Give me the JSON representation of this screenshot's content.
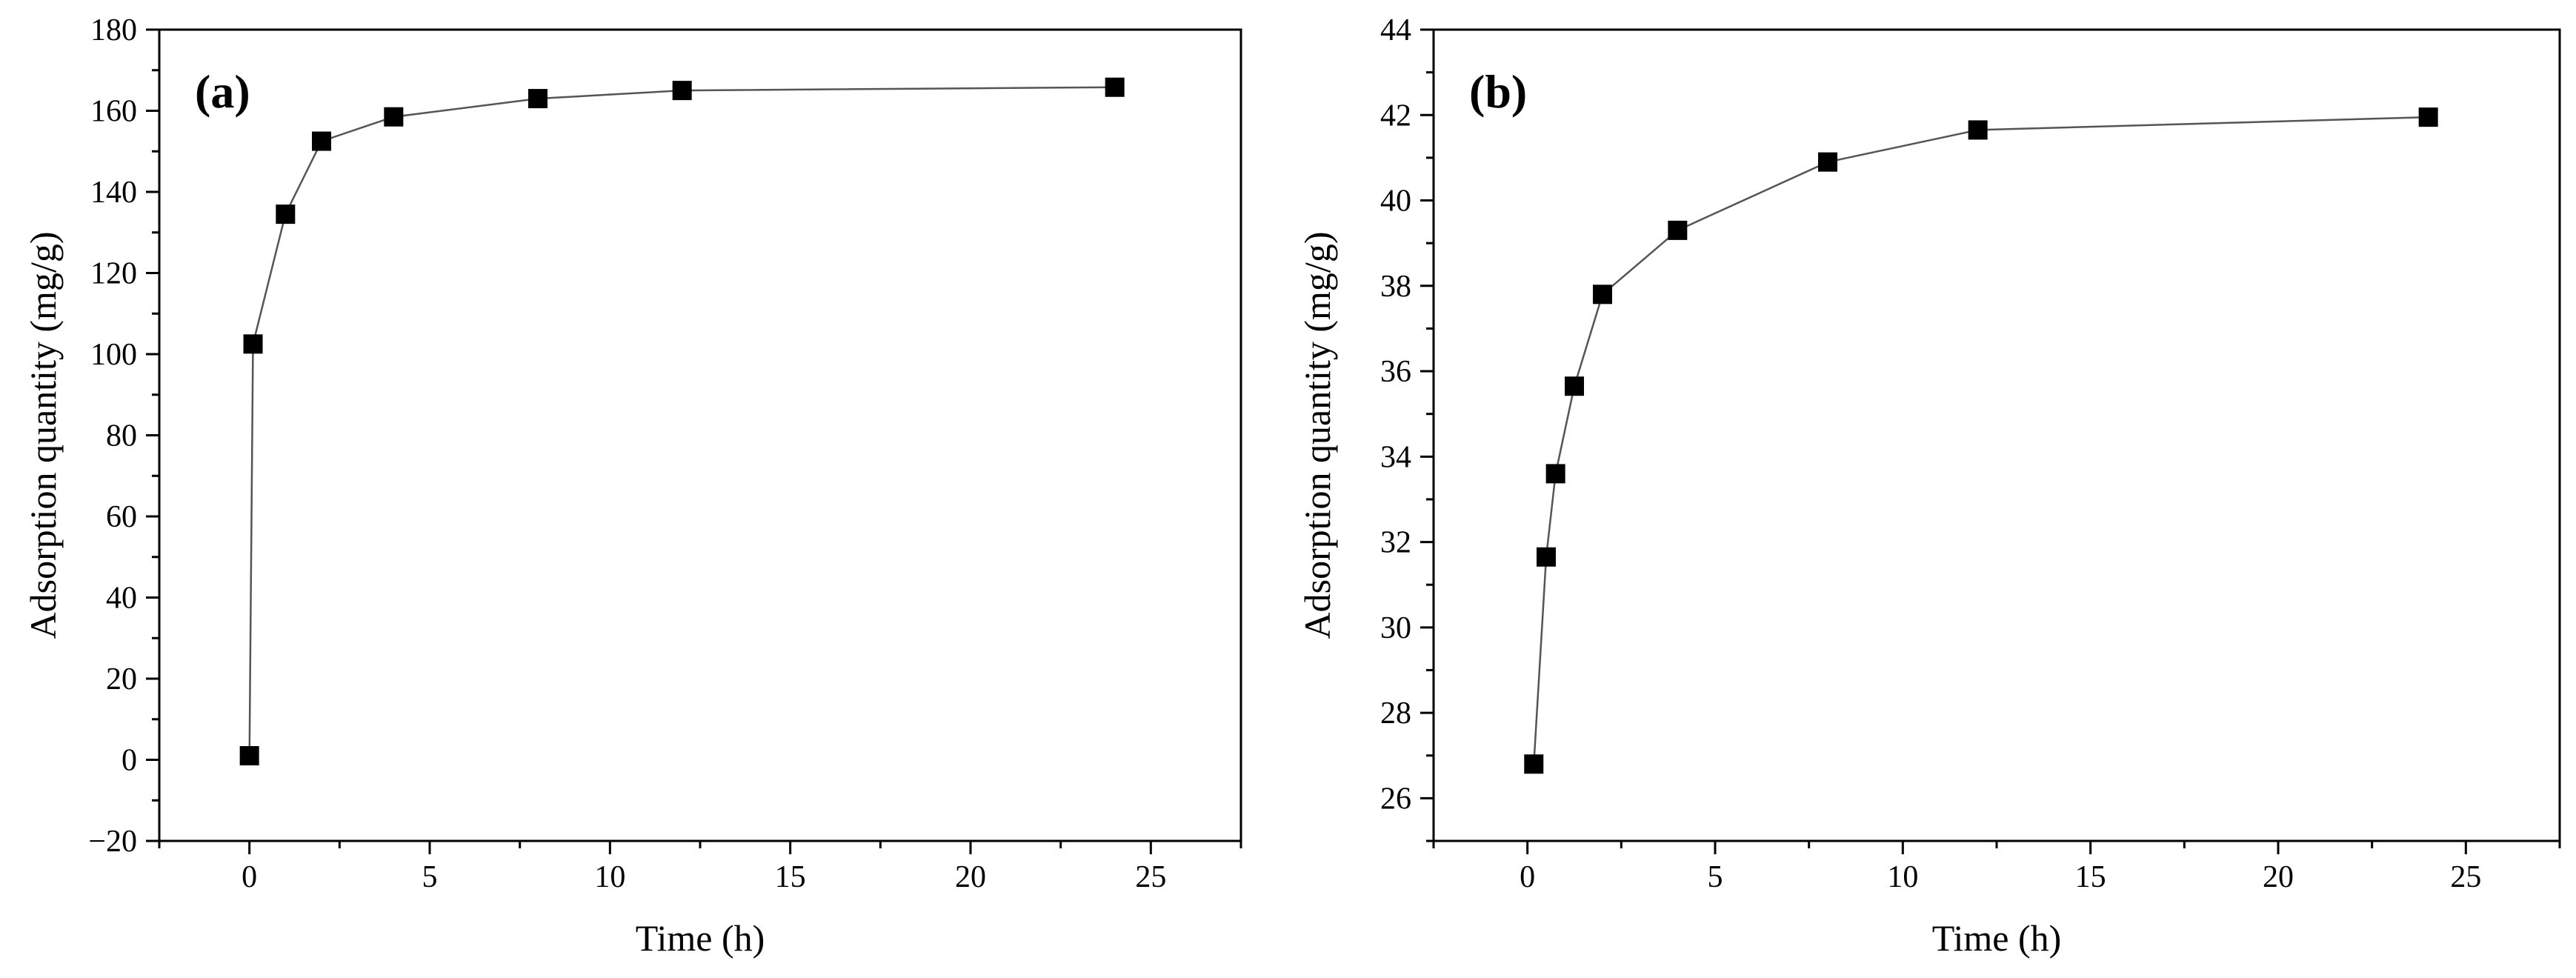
{
  "chart_data": [
    {
      "type": "line",
      "panel_label": "(a)",
      "xlabel": "Time (h)",
      "ylabel": "Adsorption quantity (mg/g)",
      "xlim": [
        -2.5,
        27.5
      ],
      "ylim": [
        -20,
        180
      ],
      "xticks": [
        0,
        5,
        10,
        15,
        20,
        25
      ],
      "yticks": [
        -20,
        0,
        20,
        40,
        60,
        80,
        100,
        120,
        140,
        160,
        180
      ],
      "grid": false,
      "marker": "square",
      "series": [
        {
          "x": [
            0,
            0.1,
            1,
            2,
            4,
            8,
            12,
            24
          ],
          "values": [
            1,
            102.5,
            134.5,
            152.5,
            158.5,
            163,
            165,
            165.8
          ]
        }
      ]
    },
    {
      "type": "line",
      "panel_label": "(b)",
      "xlabel": "Time (h)",
      "ylabel": "Adsorption quantity (mg/g)",
      "xlim": [
        -2.5,
        27.5
      ],
      "ylim": [
        25,
        44
      ],
      "xticks": [
        0,
        5,
        10,
        15,
        20,
        25
      ],
      "yticks": [
        26,
        28,
        30,
        32,
        34,
        36,
        38,
        40,
        42,
        44
      ],
      "grid": false,
      "marker": "square",
      "series": [
        {
          "x": [
            0.17,
            0.5,
            0.75,
            1.25,
            2,
            4,
            8,
            12,
            24
          ],
          "values": [
            26.8,
            31.65,
            33.6,
            35.65,
            37.8,
            39.3,
            40.9,
            41.65,
            41.95
          ]
        }
      ]
    }
  ]
}
